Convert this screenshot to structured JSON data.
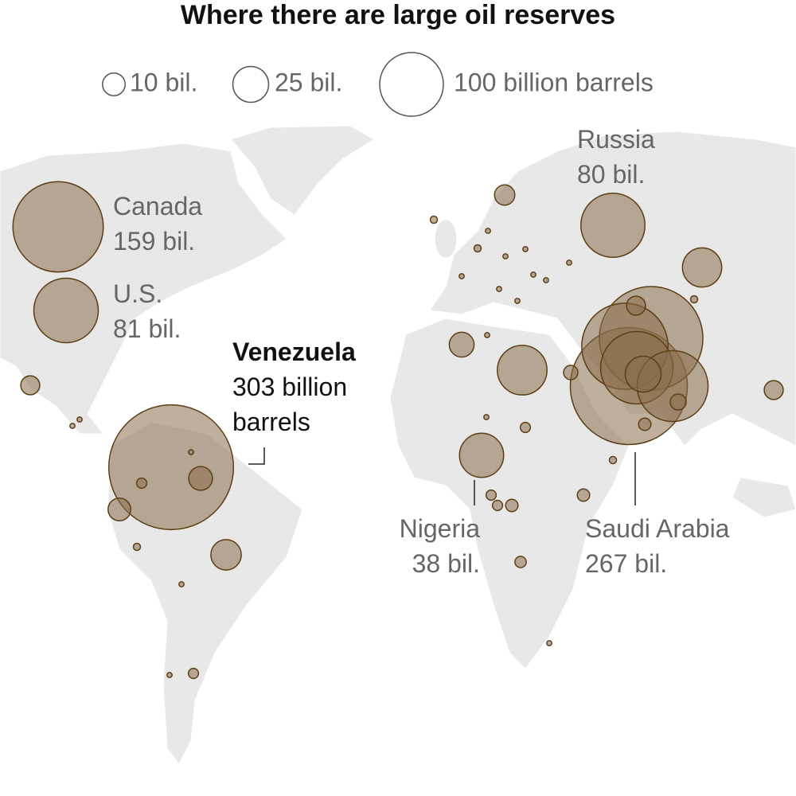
{
  "title": "Where there are large oil reserves",
  "legend": [
    {
      "value": 10,
      "label": "10 bil."
    },
    {
      "value": 25,
      "label": "25 bil."
    },
    {
      "value": 100,
      "label": "100 billion barrels"
    }
  ],
  "countries": [
    {
      "name": "Canada",
      "value": 159,
      "value_label": "159 bil."
    },
    {
      "name": "U.S.",
      "value": 81,
      "value_label": "81 bil."
    },
    {
      "name": "Russia",
      "value": 80,
      "value_label": "80 bil."
    },
    {
      "name": "Venezuela",
      "value": 303,
      "value_label": "303 billion barrels"
    },
    {
      "name": "Nigeria",
      "value": 38,
      "value_label": "38 bil."
    },
    {
      "name": "Saudi Arabia",
      "value": 267,
      "value_label": "267 bil."
    }
  ],
  "other_values": [
    209,
    145,
    102,
    98,
    25,
    30,
    48,
    12,
    18,
    10,
    11,
    7,
    7,
    8,
    7,
    5,
    3,
    4,
    3,
    2.5,
    3,
    2,
    2,
    2,
    2,
    1,
    1,
    2,
    1,
    0.5,
    0.5,
    0.5,
    0.5,
    0.5,
    0.5,
    0.5,
    0.5,
    0.5,
    0.5,
    0.5,
    0.5,
    0.5,
    1,
    0.5,
    0.5,
    0.5,
    1,
    0.5
  ]
}
